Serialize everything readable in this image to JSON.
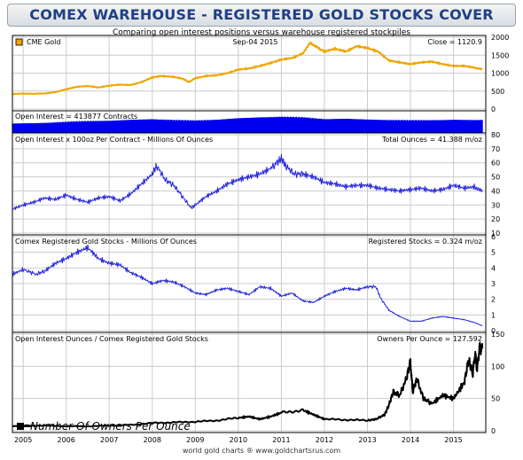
{
  "page": {
    "title": "COMEX WAREHOUSE - REGISTERED GOLD STOCKS COVER",
    "subtitle": "Comparing open interest positions versus warehouse registered stockpiles",
    "footer": "world gold charts ® www.goldchartsrus.com"
  },
  "colors": {
    "gold": "#f0a500",
    "volume": "#0000ee",
    "line_blue": "#2222dd",
    "owners": "#000000",
    "grid": "#cccccc",
    "title_text": "#1f3f86"
  },
  "x_axis": {
    "years": [
      "2005",
      "2006",
      "2007",
      "2008",
      "2009",
      "2010",
      "2011",
      "2012",
      "2013",
      "2014",
      "2015"
    ],
    "range": [
      2004.75,
      2015.75
    ]
  },
  "chart_data": [
    {
      "type": "line",
      "panel": "price",
      "legend_label": "CME Gold",
      "date_label": "Sep-04  2015",
      "readout": "Close = 1120.9",
      "ylim": [
        0,
        2000
      ],
      "yticks": [
        0,
        500,
        1000,
        1500,
        2000
      ],
      "x": [
        2004.75,
        2005.0,
        2005.25,
        2005.5,
        2005.75,
        2006.0,
        2006.25,
        2006.5,
        2006.75,
        2007.0,
        2007.25,
        2007.5,
        2007.75,
        2008.0,
        2008.2,
        2008.45,
        2008.7,
        2008.85,
        2009.0,
        2009.25,
        2009.5,
        2009.75,
        2010.0,
        2010.25,
        2010.5,
        2010.75,
        2011.0,
        2011.25,
        2011.5,
        2011.67,
        2011.85,
        2012.0,
        2012.25,
        2012.5,
        2012.75,
        2013.0,
        2013.25,
        2013.5,
        2013.75,
        2014.0,
        2014.25,
        2014.5,
        2014.75,
        2015.0,
        2015.25,
        2015.5,
        2015.67
      ],
      "y": [
        420,
        430,
        425,
        435,
        470,
        550,
        620,
        640,
        600,
        650,
        680,
        670,
        750,
        880,
        920,
        900,
        850,
        750,
        860,
        920,
        940,
        1000,
        1100,
        1130,
        1200,
        1280,
        1380,
        1420,
        1550,
        1850,
        1700,
        1600,
        1680,
        1600,
        1750,
        1700,
        1600,
        1350,
        1300,
        1250,
        1300,
        1320,
        1250,
        1200,
        1200,
        1150,
        1120
      ]
    },
    {
      "type": "area",
      "panel": "open_interest",
      "readout": "Open Interest = 413877 Contracts",
      "ylim": [
        0,
        700000
      ],
      "x": [
        2004.75,
        2005.5,
        2006.0,
        2006.5,
        2007.0,
        2007.5,
        2008.0,
        2008.5,
        2009.0,
        2009.5,
        2010.0,
        2010.5,
        2011.0,
        2011.5,
        2012.0,
        2012.5,
        2013.0,
        2013.5,
        2014.0,
        2014.5,
        2015.0,
        2015.5,
        2015.67
      ],
      "y": [
        280000,
        300000,
        330000,
        360000,
        380000,
        420000,
        440000,
        400000,
        380000,
        420000,
        480000,
        510000,
        520000,
        500000,
        440000,
        460000,
        430000,
        400000,
        390000,
        400000,
        420000,
        410000,
        413877
      ]
    },
    {
      "type": "line",
      "panel": "oz_per_contract",
      "label": "Open Interest x 100oz Per Contract - Millions Of Ounces",
      "readout": "Total Ounces = 41.388 m/oz",
      "ylim": [
        10,
        80
      ],
      "yticks": [
        10,
        20,
        30,
        40,
        50,
        60,
        70,
        80
      ],
      "x": [
        2004.75,
        2005.0,
        2005.25,
        2005.5,
        2005.75,
        2006.0,
        2006.25,
        2006.5,
        2006.75,
        2007.0,
        2007.25,
        2007.5,
        2007.75,
        2008.0,
        2008.1,
        2008.3,
        2008.5,
        2008.7,
        2008.9,
        2009.0,
        2009.25,
        2009.5,
        2009.75,
        2010.0,
        2010.25,
        2010.5,
        2010.75,
        2010.9,
        2011.0,
        2011.1,
        2011.3,
        2011.5,
        2011.75,
        2012.0,
        2012.25,
        2012.5,
        2012.75,
        2013.0,
        2013.25,
        2013.5,
        2013.75,
        2014.0,
        2014.25,
        2014.5,
        2014.75,
        2015.0,
        2015.25,
        2015.5,
        2015.67
      ],
      "y": [
        27,
        30,
        32,
        35,
        34,
        37,
        34,
        32,
        35,
        36,
        33,
        38,
        45,
        52,
        58,
        48,
        44,
        36,
        28,
        30,
        36,
        40,
        45,
        48,
        50,
        52,
        56,
        60,
        63,
        58,
        52,
        52,
        50,
        46,
        45,
        43,
        44,
        44,
        42,
        41,
        40,
        41,
        42,
        40,
        41,
        44,
        42,
        43,
        41
      ]
    },
    {
      "type": "line",
      "panel": "registered_stocks",
      "label": "Comex Registered Gold Stocks - Millions Of Ounces",
      "readout": "Registered Stocks = 0.324 m/oz",
      "ylim": [
        0,
        6
      ],
      "yticks": [
        0,
        1,
        2,
        3,
        4,
        5,
        6
      ],
      "x": [
        2004.75,
        2005.0,
        2005.3,
        2005.5,
        2005.75,
        2006.0,
        2006.25,
        2006.5,
        2006.75,
        2007.0,
        2007.25,
        2007.5,
        2007.75,
        2008.0,
        2008.25,
        2008.5,
        2008.75,
        2009.0,
        2009.25,
        2009.5,
        2009.75,
        2010.0,
        2010.25,
        2010.5,
        2010.75,
        2011.0,
        2011.25,
        2011.5,
        2011.75,
        2012.0,
        2012.25,
        2012.5,
        2012.75,
        2013.0,
        2013.2,
        2013.3,
        2013.5,
        2013.75,
        2014.0,
        2014.25,
        2014.5,
        2014.75,
        2015.0,
        2015.25,
        2015.5,
        2015.67
      ],
      "y": [
        3.6,
        3.9,
        3.6,
        3.8,
        4.3,
        4.6,
        5.0,
        5.3,
        4.6,
        4.3,
        4.2,
        3.7,
        3.4,
        3.0,
        3.2,
        3.1,
        2.8,
        2.4,
        2.3,
        2.6,
        2.7,
        2.5,
        2.3,
        2.8,
        2.7,
        2.2,
        2.4,
        1.9,
        1.8,
        2.2,
        2.5,
        2.7,
        2.6,
        2.8,
        2.8,
        2.1,
        1.3,
        0.9,
        0.6,
        0.6,
        0.8,
        0.9,
        0.8,
        0.7,
        0.5,
        0.3
      ]
    },
    {
      "type": "line",
      "panel": "owners_per_ounce",
      "label": "Open Interest Ounces / Comex Registered Gold Stocks",
      "readout": "Owners Per Ounce = 127.592",
      "legend_label": "Number Of Owners Per Ounce",
      "ylim": [
        0,
        150
      ],
      "yticks": [
        0,
        50,
        100,
        150
      ],
      "x": [
        2004.75,
        2005.0,
        2005.5,
        2006.0,
        2006.5,
        2007.0,
        2007.5,
        2008.0,
        2008.5,
        2009.0,
        2009.5,
        2010.0,
        2010.25,
        2010.5,
        2010.75,
        2011.0,
        2011.5,
        2011.75,
        2012.0,
        2012.5,
        2013.0,
        2013.2,
        2013.4,
        2013.5,
        2013.6,
        2013.75,
        2013.9,
        2014.0,
        2014.05,
        2014.15,
        2014.3,
        2014.5,
        2014.75,
        2015.0,
        2015.25,
        2015.35,
        2015.45,
        2015.5,
        2015.55,
        2015.6,
        2015.67
      ],
      "y": [
        7,
        8,
        8,
        7,
        7,
        8,
        9,
        12,
        13,
        14,
        16,
        20,
        22,
        18,
        22,
        28,
        32,
        25,
        18,
        17,
        16,
        18,
        25,
        40,
        60,
        55,
        80,
        108,
        60,
        80,
        50,
        42,
        55,
        50,
        75,
        110,
        88,
        120,
        95,
        128,
        127.592
      ]
    }
  ]
}
